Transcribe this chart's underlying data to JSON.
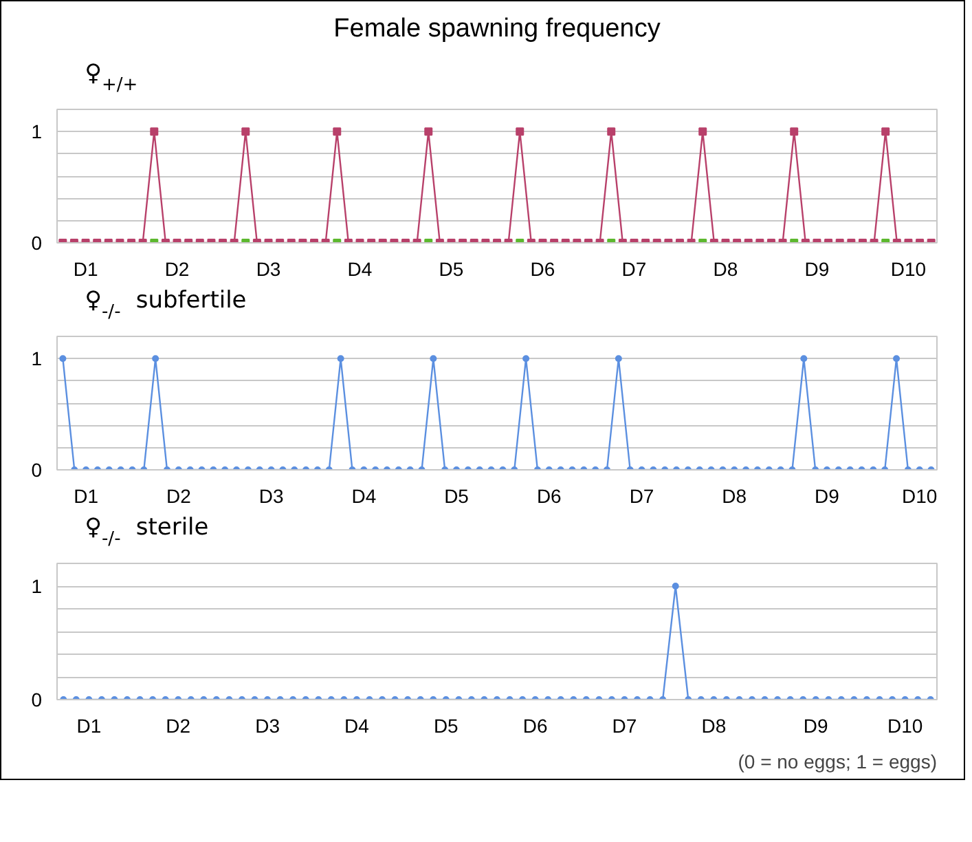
{
  "chart_data": [
    {
      "type": "line",
      "title": "Female spawning frequency",
      "subtitle": "♀$_{+/+}$",
      "ylim": [
        0,
        1.2
      ],
      "grid": "y",
      "yticks": [
        0,
        {
          "value": 0.2,
          "label": null
        },
        {
          "value": 0.4,
          "label": null
        },
        {
          "value": 0.6,
          "label": null
        },
        {
          "value": 0.8,
          "label": null
        },
        1
      ],
      "categories": [
        null,
        null,
        "D1",
        null,
        null,
        null,
        null,
        null,
        null,
        null,
        "D2",
        null,
        null,
        null,
        null,
        null,
        null,
        null,
        "D3",
        null,
        null,
        null,
        null,
        null,
        null,
        null,
        "D4",
        null,
        null,
        null,
        null,
        null,
        null,
        null,
        "D5",
        null,
        null,
        null,
        null,
        null,
        null,
        null,
        "D6",
        null,
        null,
        null,
        null,
        null,
        null,
        null,
        "D7",
        null,
        null,
        null,
        null,
        null,
        null,
        null,
        "D8",
        null,
        null,
        null,
        null,
        null,
        null,
        null,
        "D9",
        null,
        null,
        null,
        null,
        null,
        null,
        null,
        "D10",
        null,
        null
      ],
      "series": [
        {
          "color": "#b8406a",
          "marker": "square",
          "values": [
            0,
            0,
            0,
            0,
            0,
            0,
            0,
            0,
            1,
            0,
            0,
            0,
            0,
            0,
            0,
            0,
            1,
            0,
            0,
            0,
            0,
            0,
            0,
            0,
            1,
            0,
            0,
            0,
            0,
            0,
            0,
            0,
            1,
            0,
            0,
            0,
            0,
            0,
            0,
            0,
            1,
            0,
            0,
            0,
            0,
            0,
            0,
            0,
            1,
            0,
            0,
            0,
            0,
            0,
            0,
            0,
            1,
            0,
            0,
            0,
            0,
            0,
            0,
            0,
            1,
            0,
            0,
            0,
            0,
            0,
            0,
            0,
            1,
            0,
            0,
            0,
            0
          ]
        },
        {
          "type": "scatter",
          "color": "#5cb82e",
          "marker": "square",
          "values": [
            null,
            null,
            null,
            null,
            null,
            null,
            null,
            null,
            0,
            null,
            null,
            null,
            null,
            null,
            null,
            null,
            0,
            null,
            null,
            null,
            null,
            null,
            null,
            null,
            0,
            null,
            null,
            null,
            null,
            null,
            null,
            null,
            0,
            null,
            null,
            null,
            null,
            null,
            null,
            null,
            0,
            null,
            null,
            null,
            null,
            null,
            null,
            null,
            0,
            null,
            null,
            null,
            null,
            null,
            null,
            null,
            0,
            null,
            null,
            null,
            null,
            null,
            null,
            null,
            0,
            null,
            null,
            null,
            null,
            null,
            null,
            null,
            0,
            null,
            null,
            null,
            null
          ]
        }
      ]
    },
    {
      "type": "line",
      "subtitle": "♀$_{-/-}$ subfertile",
      "ylim": [
        0,
        1.2
      ],
      "grid": "y",
      "yticks": [
        0,
        {
          "value": 0.2,
          "label": null
        },
        {
          "value": 0.4,
          "label": null
        },
        {
          "value": 0.6,
          "label": null
        },
        {
          "value": 0.8,
          "label": null
        },
        1
      ],
      "categories": [
        null,
        null,
        "D1",
        null,
        null,
        null,
        null,
        null,
        null,
        null,
        "D2",
        null,
        null,
        null,
        null,
        null,
        null,
        null,
        "D3",
        null,
        null,
        null,
        null,
        null,
        null,
        null,
        "D4",
        null,
        null,
        null,
        null,
        null,
        null,
        null,
        "D5",
        null,
        null,
        null,
        null,
        null,
        null,
        null,
        "D6",
        null,
        null,
        null,
        null,
        null,
        null,
        null,
        "D7",
        null,
        null,
        null,
        null,
        null,
        null,
        null,
        "D8",
        null,
        null,
        null,
        null,
        null,
        null,
        null,
        "D9",
        null,
        null,
        null,
        null,
        null,
        null,
        null,
        "D10",
        null
      ],
      "series": [
        {
          "color": "#5b8fe0",
          "marker": "circle",
          "values": [
            1,
            0,
            0,
            0,
            0,
            0,
            0,
            0,
            1,
            0,
            0,
            0,
            0,
            0,
            0,
            0,
            0,
            0,
            0,
            0,
            0,
            0,
            0,
            0,
            1,
            0,
            0,
            0,
            0,
            0,
            0,
            0,
            1,
            0,
            0,
            0,
            0,
            0,
            0,
            0,
            1,
            0,
            0,
            0,
            0,
            0,
            0,
            0,
            1,
            0,
            0,
            0,
            0,
            0,
            0,
            0,
            0,
            0,
            0,
            0,
            0,
            0,
            0,
            0,
            1,
            0,
            0,
            0,
            0,
            0,
            0,
            0,
            1,
            0,
            0,
            0
          ]
        }
      ]
    },
    {
      "type": "line",
      "subtitle": "♀$_{-/-}$ sterile",
      "ylim": [
        0,
        1.2
      ],
      "grid": "y",
      "yticks": [
        0,
        {
          "value": 0.2,
          "label": null
        },
        {
          "value": 0.4,
          "label": null
        },
        {
          "value": 0.6,
          "label": null
        },
        {
          "value": 0.8,
          "label": null
        },
        1
      ],
      "categories": [
        null,
        null,
        "D1",
        null,
        null,
        null,
        null,
        null,
        null,
        "D2",
        null,
        null,
        null,
        null,
        null,
        null,
        "D3",
        null,
        null,
        null,
        null,
        null,
        null,
        "D4",
        null,
        null,
        null,
        null,
        null,
        null,
        "D5",
        null,
        null,
        null,
        null,
        null,
        null,
        "D6",
        null,
        null,
        null,
        null,
        null,
        null,
        "D7",
        null,
        null,
        null,
        null,
        null,
        null,
        "D8",
        null,
        null,
        null,
        null,
        null,
        null,
        null,
        "D9",
        null,
        null,
        null,
        null,
        null,
        null,
        "D10",
        null,
        null
      ],
      "annotations": [
        "(0 = no eggs; 1 = eggs)"
      ],
      "series": [
        {
          "color": "#5b8fe0",
          "marker": "circle",
          "values": [
            0,
            0,
            0,
            0,
            0,
            0,
            0,
            0,
            0,
            0,
            0,
            0,
            0,
            0,
            0,
            0,
            0,
            0,
            0,
            0,
            0,
            0,
            0,
            0,
            0,
            0,
            0,
            0,
            0,
            0,
            0,
            0,
            0,
            0,
            0,
            0,
            0,
            0,
            0,
            0,
            0,
            0,
            0,
            0,
            0,
            0,
            0,
            0,
            1,
            0,
            0,
            0,
            0,
            0,
            0,
            0,
            0,
            0,
            0,
            0,
            0,
            0,
            0,
            0,
            0,
            0,
            0,
            0,
            0
          ]
        }
      ]
    }
  ]
}
